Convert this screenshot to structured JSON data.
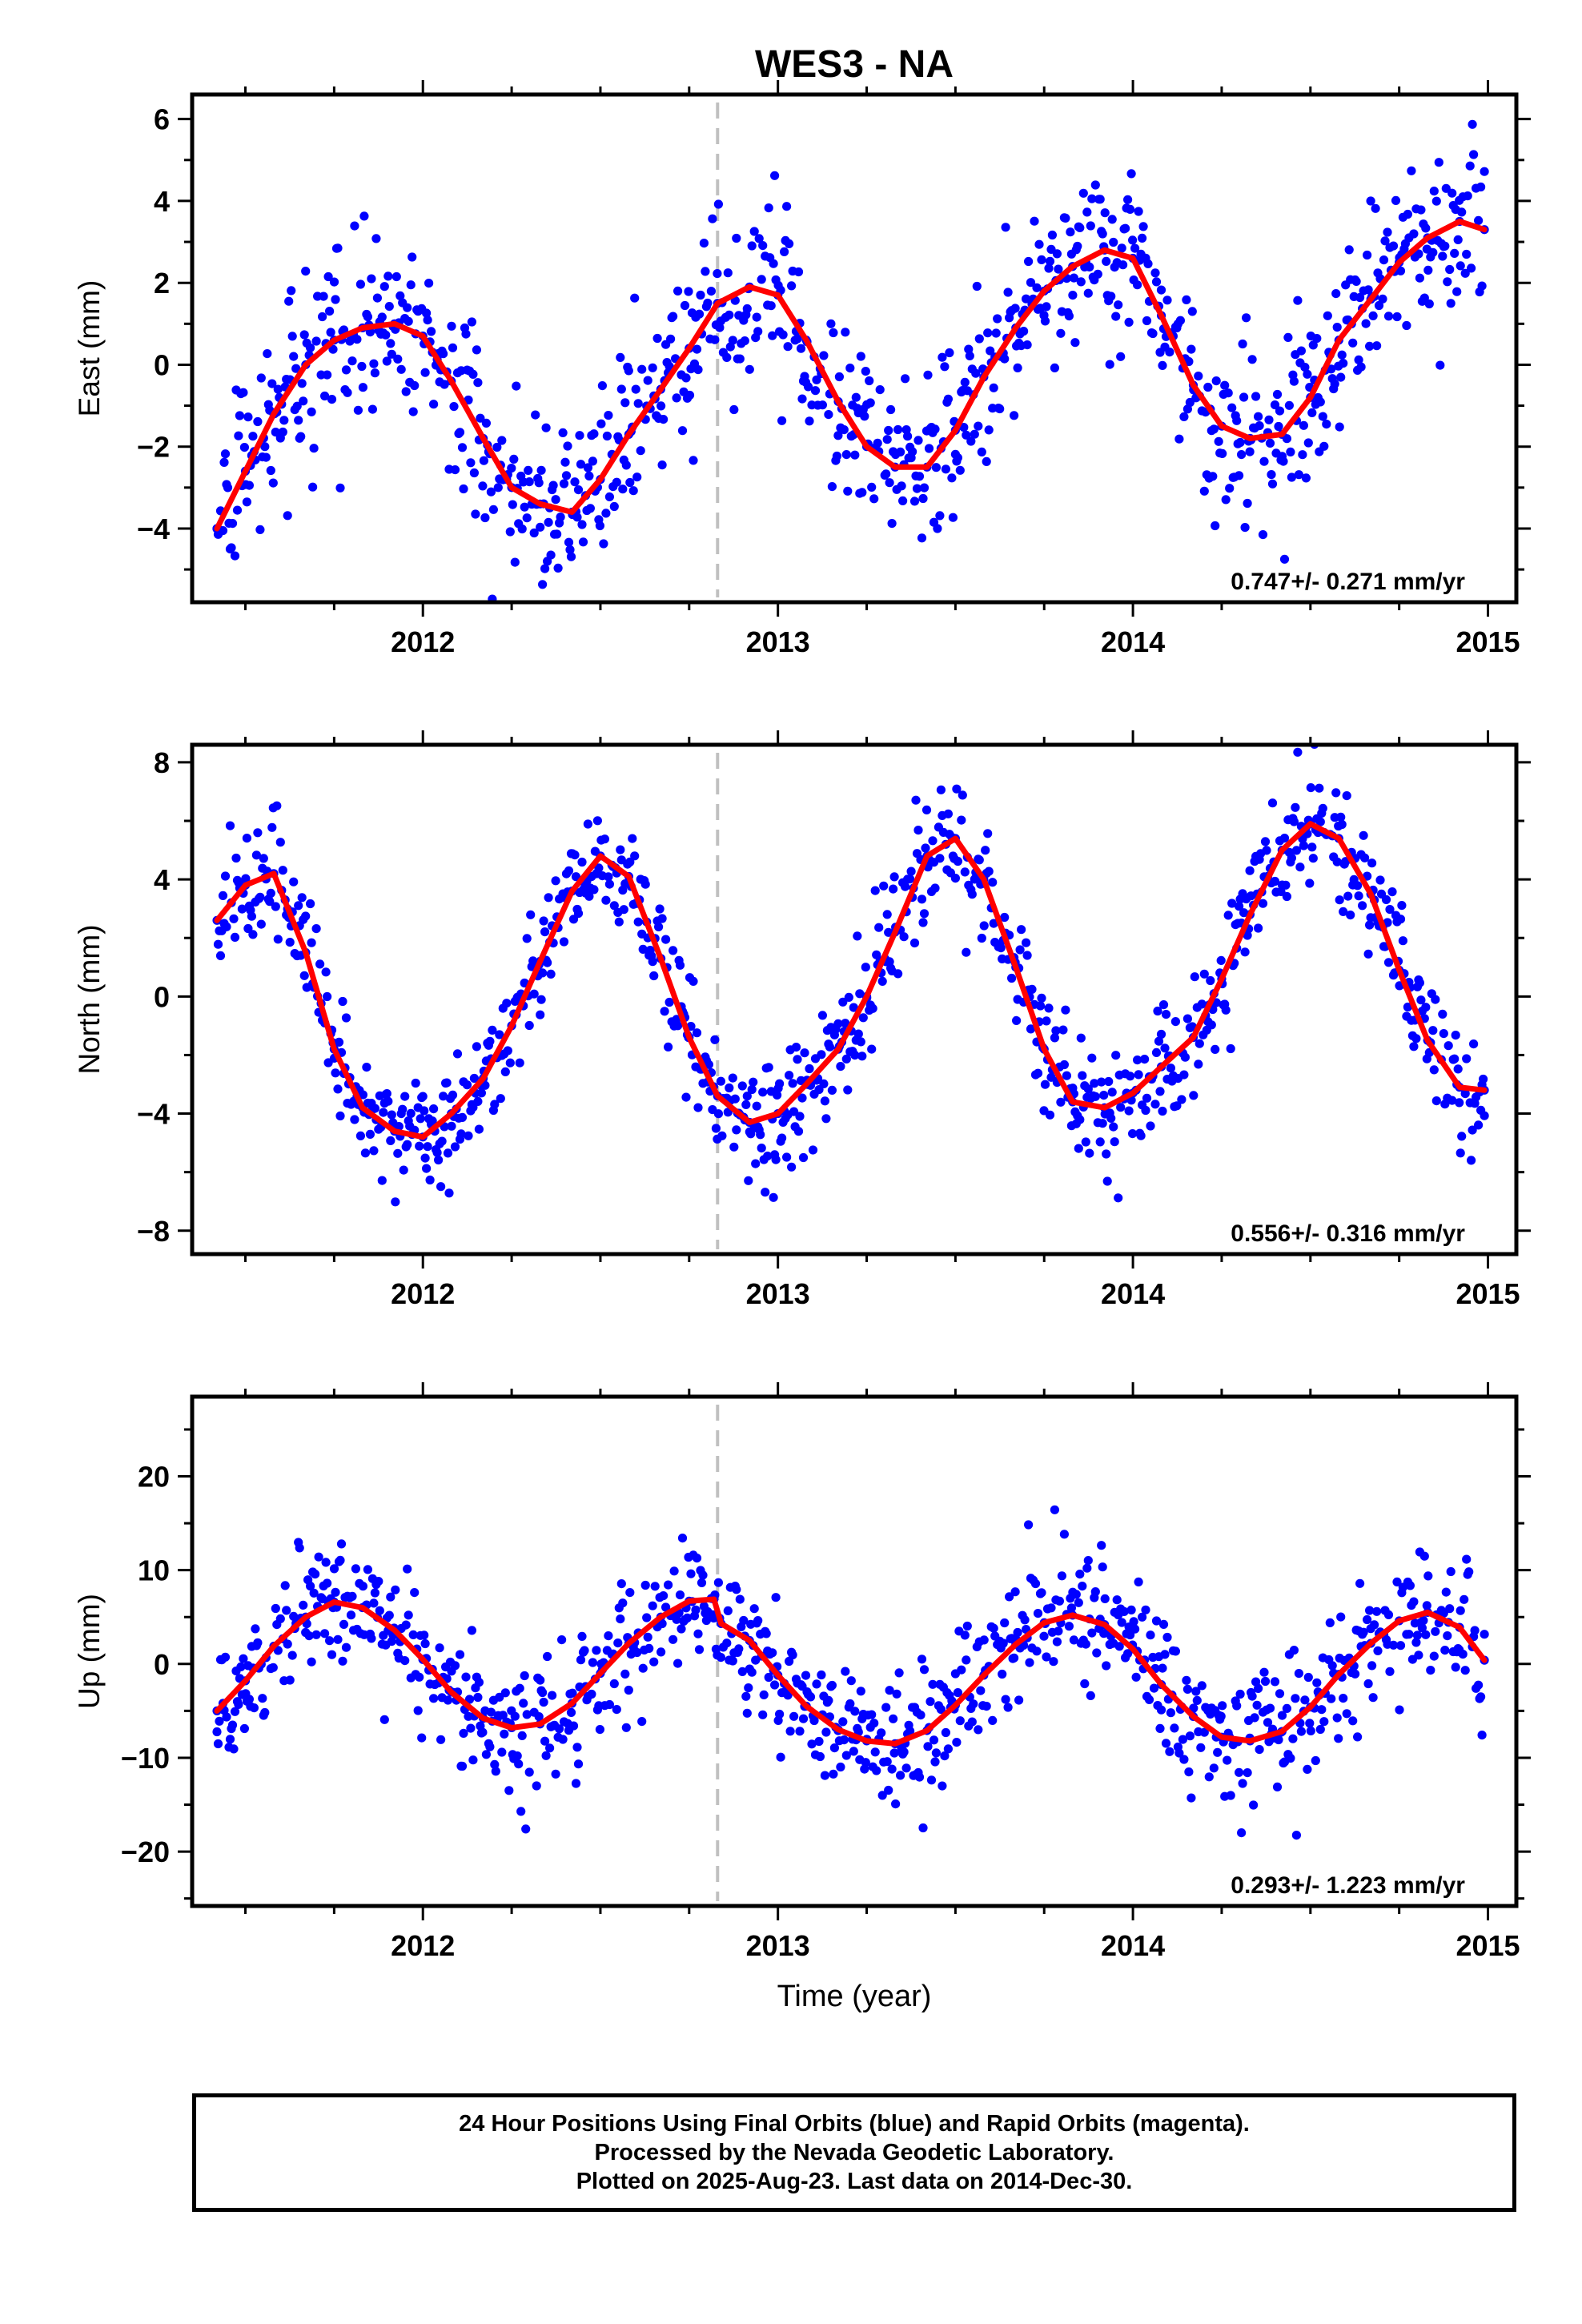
{
  "chart_data": [
    {
      "type": "scatter",
      "title": "WES3 - NA",
      "ylabel": "East (mm)",
      "xlabel": "",
      "xlim": [
        2011.35,
        2015.08
      ],
      "ylim": [
        -5.8,
        6.6
      ],
      "yticks": [
        -4,
        -2,
        0,
        2,
        4,
        6
      ],
      "xticks": [
        2012,
        2013,
        2014,
        2015
      ],
      "rate_label": "0.747+/- 0.271 mm/yr",
      "vertical_marker_x": 2012.83,
      "series": [
        {
          "kind": "points",
          "color": "#0000ff",
          "description": "daily positions",
          "x": [
            2011.42,
            2011.5,
            2011.58,
            2011.67,
            2011.75,
            2011.83,
            2011.92,
            2012.0,
            2012.08,
            2012.17,
            2012.25,
            2012.33,
            2012.42,
            2012.5,
            2012.58,
            2012.67,
            2012.75,
            2012.83,
            2012.92,
            2013.0,
            2013.08,
            2013.17,
            2013.25,
            2013.33,
            2013.42,
            2013.5,
            2013.58,
            2013.67,
            2013.75,
            2013.83,
            2013.92,
            2014.0,
            2014.08,
            2014.17,
            2014.25,
            2014.33,
            2014.42,
            2014.5,
            2014.58,
            2014.67,
            2014.75,
            2014.83,
            2014.92,
            2014.99
          ],
          "y": [
            -4.0,
            -2.6,
            -1.2,
            0.0,
            0.6,
            0.9,
            1.0,
            0.7,
            -0.4,
            -1.8,
            -3.0,
            -3.4,
            -3.6,
            -2.8,
            -1.7,
            -0.6,
            0.4,
            1.5,
            1.9,
            1.7,
            0.6,
            -0.9,
            -2.0,
            -2.5,
            -2.5,
            -1.6,
            -0.3,
            0.9,
            1.8,
            2.4,
            2.8,
            2.6,
            1.2,
            -0.5,
            -1.5,
            -1.8,
            -1.7,
            -0.8,
            0.6,
            1.6,
            2.5,
            3.1,
            3.5,
            3.3
          ]
        },
        {
          "kind": "fit",
          "color": "#ff0000",
          "description": "model fit",
          "x": [
            2011.42,
            2011.5,
            2011.58,
            2011.67,
            2011.75,
            2011.83,
            2011.92,
            2012.0,
            2012.08,
            2012.17,
            2012.25,
            2012.33,
            2012.42,
            2012.5,
            2012.58,
            2012.67,
            2012.75,
            2012.83,
            2012.92,
            2013.0,
            2013.08,
            2013.17,
            2013.25,
            2013.33,
            2013.42,
            2013.5,
            2013.58,
            2013.67,
            2013.75,
            2013.83,
            2013.92,
            2014.0,
            2014.08,
            2014.17,
            2014.25,
            2014.33,
            2014.42,
            2014.5,
            2014.58,
            2014.67,
            2014.75,
            2014.83,
            2014.92,
            2014.99
          ],
          "y": [
            -4.0,
            -2.6,
            -1.2,
            0.0,
            0.6,
            0.9,
            1.0,
            0.7,
            -0.4,
            -1.8,
            -3.0,
            -3.4,
            -3.6,
            -2.8,
            -1.7,
            -0.6,
            0.4,
            1.5,
            1.9,
            1.7,
            0.6,
            -0.9,
            -2.0,
            -2.5,
            -2.5,
            -1.6,
            -0.3,
            0.9,
            1.8,
            2.4,
            2.8,
            2.6,
            1.2,
            -0.5,
            -1.5,
            -1.8,
            -1.7,
            -0.8,
            0.6,
            1.6,
            2.5,
            3.1,
            3.5,
            3.3
          ]
        }
      ]
    },
    {
      "type": "scatter",
      "title": "",
      "ylabel": "North (mm)",
      "xlabel": "",
      "xlim": [
        2011.35,
        2015.08
      ],
      "ylim": [
        -8.8,
        8.6
      ],
      "yticks": [
        -8,
        -4,
        0,
        4,
        8
      ],
      "xticks": [
        2012,
        2013,
        2014,
        2015
      ],
      "rate_label": "0.556+/- 0.316 mm/yr",
      "vertical_marker_x": 2012.83,
      "series": [
        {
          "kind": "points",
          "color": "#0000ff",
          "description": "daily positions",
          "x": [
            2011.42,
            2011.5,
            2011.58,
            2011.67,
            2011.75,
            2011.83,
            2011.92,
            2012.0,
            2012.08,
            2012.17,
            2012.25,
            2012.33,
            2012.42,
            2012.5,
            2012.58,
            2012.67,
            2012.75,
            2012.83,
            2012.92,
            2013.0,
            2013.08,
            2013.17,
            2013.25,
            2013.33,
            2013.42,
            2013.5,
            2013.58,
            2013.67,
            2013.75,
            2013.83,
            2013.92,
            2014.0,
            2014.08,
            2014.17,
            2014.25,
            2014.33,
            2014.42,
            2014.5,
            2014.58,
            2014.67,
            2014.75,
            2014.83,
            2014.92,
            2014.99
          ],
          "y": [
            2.6,
            3.8,
            4.2,
            1.5,
            -1.8,
            -3.8,
            -4.6,
            -4.8,
            -4.0,
            -2.8,
            -1.0,
            1.2,
            3.6,
            4.8,
            4.1,
            1.3,
            -1.4,
            -3.4,
            -4.3,
            -4.0,
            -3.0,
            -1.8,
            0.0,
            2.2,
            4.8,
            5.4,
            4.0,
            1.0,
            -1.8,
            -3.6,
            -3.8,
            -3.3,
            -2.4,
            -1.4,
            0.6,
            2.8,
            5.0,
            5.9,
            5.4,
            3.5,
            0.9,
            -1.5,
            -3.1,
            -3.2
          ]
        },
        {
          "kind": "fit",
          "color": "#ff0000",
          "description": "model fit",
          "x": [
            2011.42,
            2011.5,
            2011.58,
            2011.67,
            2011.75,
            2011.83,
            2011.92,
            2012.0,
            2012.08,
            2012.17,
            2012.25,
            2012.33,
            2012.42,
            2012.5,
            2012.58,
            2012.67,
            2012.75,
            2012.83,
            2012.92,
            2013.0,
            2013.08,
            2013.17,
            2013.25,
            2013.33,
            2013.42,
            2013.5,
            2013.58,
            2013.67,
            2013.75,
            2013.83,
            2013.92,
            2014.0,
            2014.08,
            2014.17,
            2014.25,
            2014.33,
            2014.42,
            2014.5,
            2014.58,
            2014.67,
            2014.75,
            2014.83,
            2014.92,
            2014.99
          ],
          "y": [
            2.6,
            3.8,
            4.2,
            1.5,
            -1.8,
            -3.8,
            -4.6,
            -4.8,
            -4.0,
            -2.8,
            -1.0,
            1.2,
            3.6,
            4.8,
            4.1,
            1.3,
            -1.4,
            -3.4,
            -4.3,
            -4.0,
            -3.0,
            -1.8,
            0.0,
            2.2,
            4.8,
            5.4,
            4.0,
            1.0,
            -1.8,
            -3.6,
            -3.8,
            -3.3,
            -2.4,
            -1.4,
            0.6,
            2.8,
            5.0,
            5.9,
            5.4,
            3.5,
            0.9,
            -1.5,
            -3.1,
            -3.2
          ]
        }
      ]
    },
    {
      "type": "scatter",
      "title": "",
      "ylabel": "Up (mm)",
      "xlabel": "Time (year)",
      "xlim": [
        2011.35,
        2015.08
      ],
      "ylim": [
        -25.8,
        28.5
      ],
      "yticks": [
        -20,
        -10,
        0,
        10,
        20
      ],
      "xticks": [
        2012,
        2013,
        2014,
        2015
      ],
      "rate_label": "0.293+/- 1.223 mm/yr",
      "vertical_marker_x": 2012.83,
      "series": [
        {
          "kind": "points",
          "color": "#0000ff",
          "description": "daily positions",
          "x": [
            2011.42,
            2011.5,
            2011.58,
            2011.67,
            2011.75,
            2011.83,
            2011.92,
            2012.0,
            2012.08,
            2012.17,
            2012.25,
            2012.33,
            2012.42,
            2012.5,
            2012.58,
            2012.67,
            2012.75,
            2012.82,
            2012.84,
            2012.92,
            2013.0,
            2013.08,
            2013.17,
            2013.25,
            2013.33,
            2013.42,
            2013.5,
            2013.58,
            2013.67,
            2013.75,
            2013.83,
            2013.92,
            2014.0,
            2014.08,
            2014.17,
            2014.25,
            2014.33,
            2014.42,
            2014.5,
            2014.58,
            2014.67,
            2014.75,
            2014.83,
            2014.92,
            2014.99
          ],
          "y": [
            -5.0,
            -1.8,
            1.9,
            5.0,
            6.6,
            6.0,
            3.6,
            0.5,
            -3.0,
            -5.8,
            -6.8,
            -6.4,
            -4.2,
            -1.0,
            2.2,
            5.0,
            6.7,
            6.9,
            4.3,
            2.5,
            -1.2,
            -4.5,
            -7.0,
            -8.2,
            -8.5,
            -7.1,
            -4.4,
            -1.2,
            2.1,
            4.4,
            5.2,
            4.2,
            1.6,
            -2.2,
            -5.6,
            -7.8,
            -8.2,
            -7.2,
            -4.6,
            -1.1,
            2.2,
            4.6,
            5.5,
            3.9,
            0.4
          ]
        },
        {
          "kind": "fit",
          "color": "#ff0000",
          "description": "model fit",
          "x": [
            2011.42,
            2011.5,
            2011.58,
            2011.67,
            2011.75,
            2011.83,
            2011.92,
            2012.0,
            2012.08,
            2012.17,
            2012.25,
            2012.33,
            2012.42,
            2012.5,
            2012.58,
            2012.67,
            2012.75,
            2012.82,
            2012.84,
            2012.92,
            2013.0,
            2013.08,
            2013.17,
            2013.25,
            2013.33,
            2013.42,
            2013.5,
            2013.58,
            2013.67,
            2013.75,
            2013.83,
            2013.92,
            2014.0,
            2014.08,
            2014.17,
            2014.25,
            2014.33,
            2014.42,
            2014.5,
            2014.58,
            2014.67,
            2014.75,
            2014.83,
            2014.92,
            2014.99
          ],
          "y": [
            -5.0,
            -1.8,
            1.9,
            5.0,
            6.6,
            6.0,
            3.6,
            0.5,
            -3.0,
            -5.8,
            -6.8,
            -6.4,
            -4.2,
            -1.0,
            2.2,
            5.0,
            6.7,
            6.9,
            4.3,
            2.5,
            -1.2,
            -4.5,
            -7.0,
            -8.2,
            -8.5,
            -7.1,
            -4.4,
            -1.2,
            2.1,
            4.4,
            5.2,
            4.2,
            1.6,
            -2.2,
            -5.6,
            -7.8,
            -8.2,
            -7.2,
            -4.6,
            -1.1,
            2.2,
            4.6,
            5.5,
            3.9,
            0.4
          ]
        }
      ]
    }
  ],
  "footer": {
    "line1": "24 Hour Positions Using Final Orbits (blue) and Rapid Orbits (magenta).",
    "line2": "Processed by the Nevada Geodetic Laboratory.",
    "line3": "Plotted on 2025-Aug-23. Last data on 2014-Dec-30."
  },
  "colors": {
    "points": "#0000ff",
    "fit": "#ff0000",
    "marker": "#c0c0c0",
    "frame": "#000000"
  }
}
